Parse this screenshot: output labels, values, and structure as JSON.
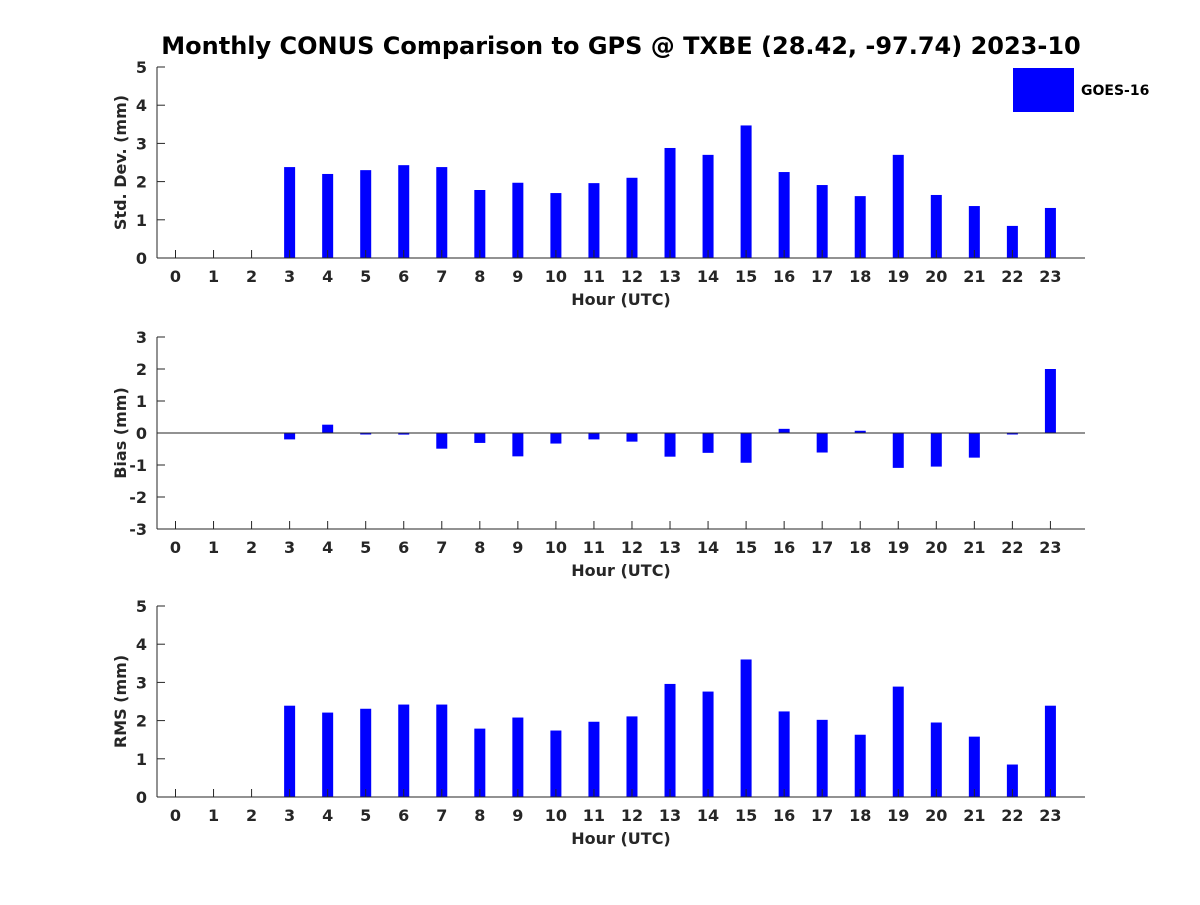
{
  "figure_title": "Monthly CONUS Comparison to GPS @ TXBE (28.42, -97.74) 2023-10",
  "legend": {
    "label": "GOES-16",
    "placement": "top-right"
  },
  "colors": {
    "bar": "#0000ff",
    "axis": "#262626"
  },
  "chart_data": [
    {
      "type": "bar",
      "ylabel": "Std. Dev. (mm)",
      "xlabel": "Hour (UTC)",
      "ylim": [
        0,
        5
      ],
      "yticks": [
        "0",
        "1",
        "2",
        "3",
        "4",
        "5"
      ],
      "categories": [
        "0",
        "1",
        "2",
        "3",
        "4",
        "5",
        "6",
        "7",
        "8",
        "9",
        "10",
        "11",
        "12",
        "13",
        "14",
        "15",
        "16",
        "17",
        "18",
        "19",
        "20",
        "21",
        "22",
        "23"
      ],
      "series": [
        {
          "name": "GOES-16",
          "values": [
            null,
            null,
            null,
            2.38,
            2.2,
            2.3,
            2.43,
            2.38,
            1.78,
            1.97,
            1.7,
            1.96,
            2.1,
            2.88,
            2.7,
            3.47,
            2.25,
            1.91,
            1.62,
            2.7,
            1.65,
            1.36,
            0.84,
            1.31
          ]
        }
      ]
    },
    {
      "type": "bar",
      "ylabel": "Bias (mm)",
      "xlabel": "Hour (UTC)",
      "ylim": [
        -3,
        3
      ],
      "yticks": [
        "-3",
        "-2",
        "-1",
        "0",
        "1",
        "2",
        "3"
      ],
      "categories": [
        "0",
        "1",
        "2",
        "3",
        "4",
        "5",
        "6",
        "7",
        "8",
        "9",
        "10",
        "11",
        "12",
        "13",
        "14",
        "15",
        "16",
        "17",
        "18",
        "19",
        "20",
        "21",
        "22",
        "23"
      ],
      "series": [
        {
          "name": "GOES-16",
          "values": [
            null,
            null,
            null,
            -0.2,
            0.26,
            -0.01,
            -0.05,
            -0.49,
            -0.31,
            -0.73,
            -0.33,
            -0.2,
            -0.27,
            -0.74,
            -0.62,
            -0.93,
            0.13,
            -0.61,
            0.07,
            -1.09,
            -1.05,
            -0.77,
            -0.02,
            2.0
          ]
        }
      ]
    },
    {
      "type": "bar",
      "ylabel": "RMS (mm)",
      "xlabel": "Hour (UTC)",
      "ylim": [
        0,
        5
      ],
      "yticks": [
        "0",
        "1",
        "2",
        "3",
        "4",
        "5"
      ],
      "categories": [
        "0",
        "1",
        "2",
        "3",
        "4",
        "5",
        "6",
        "7",
        "8",
        "9",
        "10",
        "11",
        "12",
        "13",
        "14",
        "15",
        "16",
        "17",
        "18",
        "19",
        "20",
        "21",
        "22",
        "23"
      ],
      "series": [
        {
          "name": "GOES-16",
          "values": [
            null,
            null,
            null,
            2.39,
            2.21,
            2.31,
            2.42,
            2.42,
            1.79,
            2.08,
            1.74,
            1.97,
            2.11,
            2.96,
            2.76,
            3.6,
            2.24,
            2.02,
            1.63,
            2.89,
            1.95,
            1.58,
            0.85,
            2.39
          ]
        }
      ]
    }
  ]
}
